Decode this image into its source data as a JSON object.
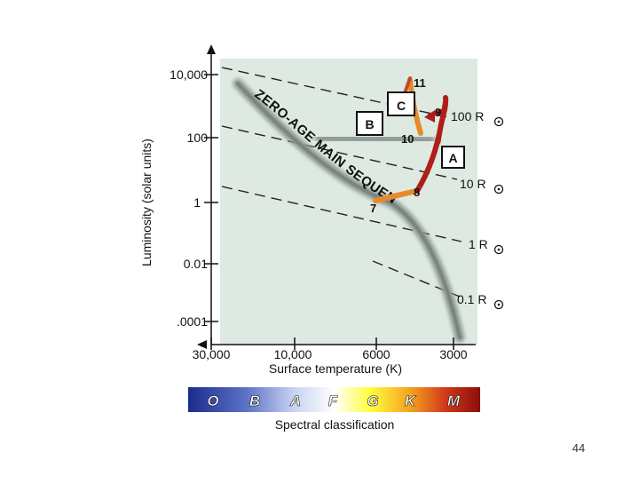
{
  "diagram": {
    "y_axis_label": "Luminosity (solar units)",
    "x_axis_label": "Surface temperature (K)",
    "y_ticks": [
      "10,000",
      "100",
      "1",
      "0.01",
      ".0001"
    ],
    "x_ticks": [
      "30,000",
      "10,000",
      "6000",
      "3000"
    ],
    "main_sequence_label": "ZERO-AGE MAIN SEQUENCE",
    "radius_lines": [
      "100 R",
      "10 R",
      "1 R",
      "0.1 R"
    ],
    "stages": [
      "7",
      "8",
      "9",
      "10",
      "11"
    ],
    "boxes": [
      "A",
      "B",
      "C"
    ],
    "spectral_classes": [
      "O",
      "B",
      "A",
      "F",
      "G",
      "K",
      "M"
    ],
    "spectral_label": "Spectral classification"
  },
  "page_number": "44",
  "colors": {
    "plot_background": "#dde9e1",
    "track_red": "#b01e18",
    "track_orange": "#e98a2a",
    "spectral_O": "#1b2c8c",
    "spectral_G": "#ffff40",
    "spectral_M": "#8a0f0a"
  }
}
